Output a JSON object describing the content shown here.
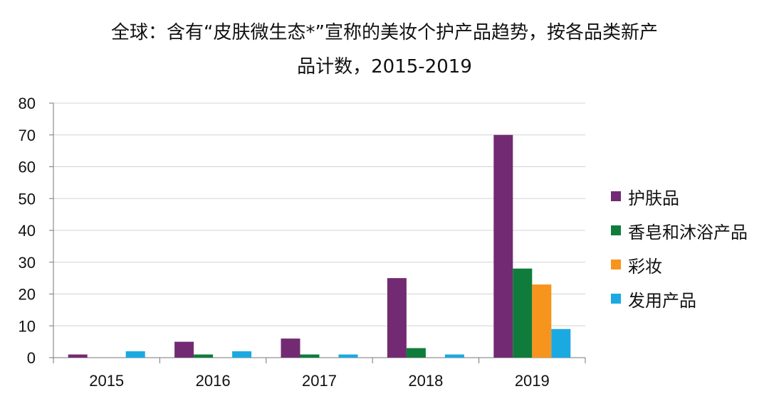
{
  "chart_data": {
    "type": "bar",
    "title_line1": "全球：含有“皮肤微生态*”宣称的美妆个护产品趋势，按各品类新产",
    "title_line2": "品计数，2015-2019",
    "categories": [
      "2015",
      "2016",
      "2017",
      "2018",
      "2019"
    ],
    "ylim": [
      0,
      80
    ],
    "yticks": [
      0,
      10,
      20,
      30,
      40,
      50,
      60,
      70,
      80
    ],
    "grid": true,
    "legend_position": "right",
    "series": [
      {
        "name": "护肤品",
        "color": "#722b72",
        "values": [
          1,
          5,
          6,
          25,
          70
        ]
      },
      {
        "name": "香皂和沐浴产品",
        "color": "#0f7c3c",
        "values": [
          0,
          1,
          1,
          3,
          28
        ]
      },
      {
        "name": "彩妆",
        "color": "#f7941d",
        "values": [
          0,
          0,
          0,
          0,
          23
        ]
      },
      {
        "name": "发用产品",
        "color": "#1ba9e1",
        "values": [
          2,
          2,
          1,
          1,
          9
        ]
      }
    ]
  }
}
